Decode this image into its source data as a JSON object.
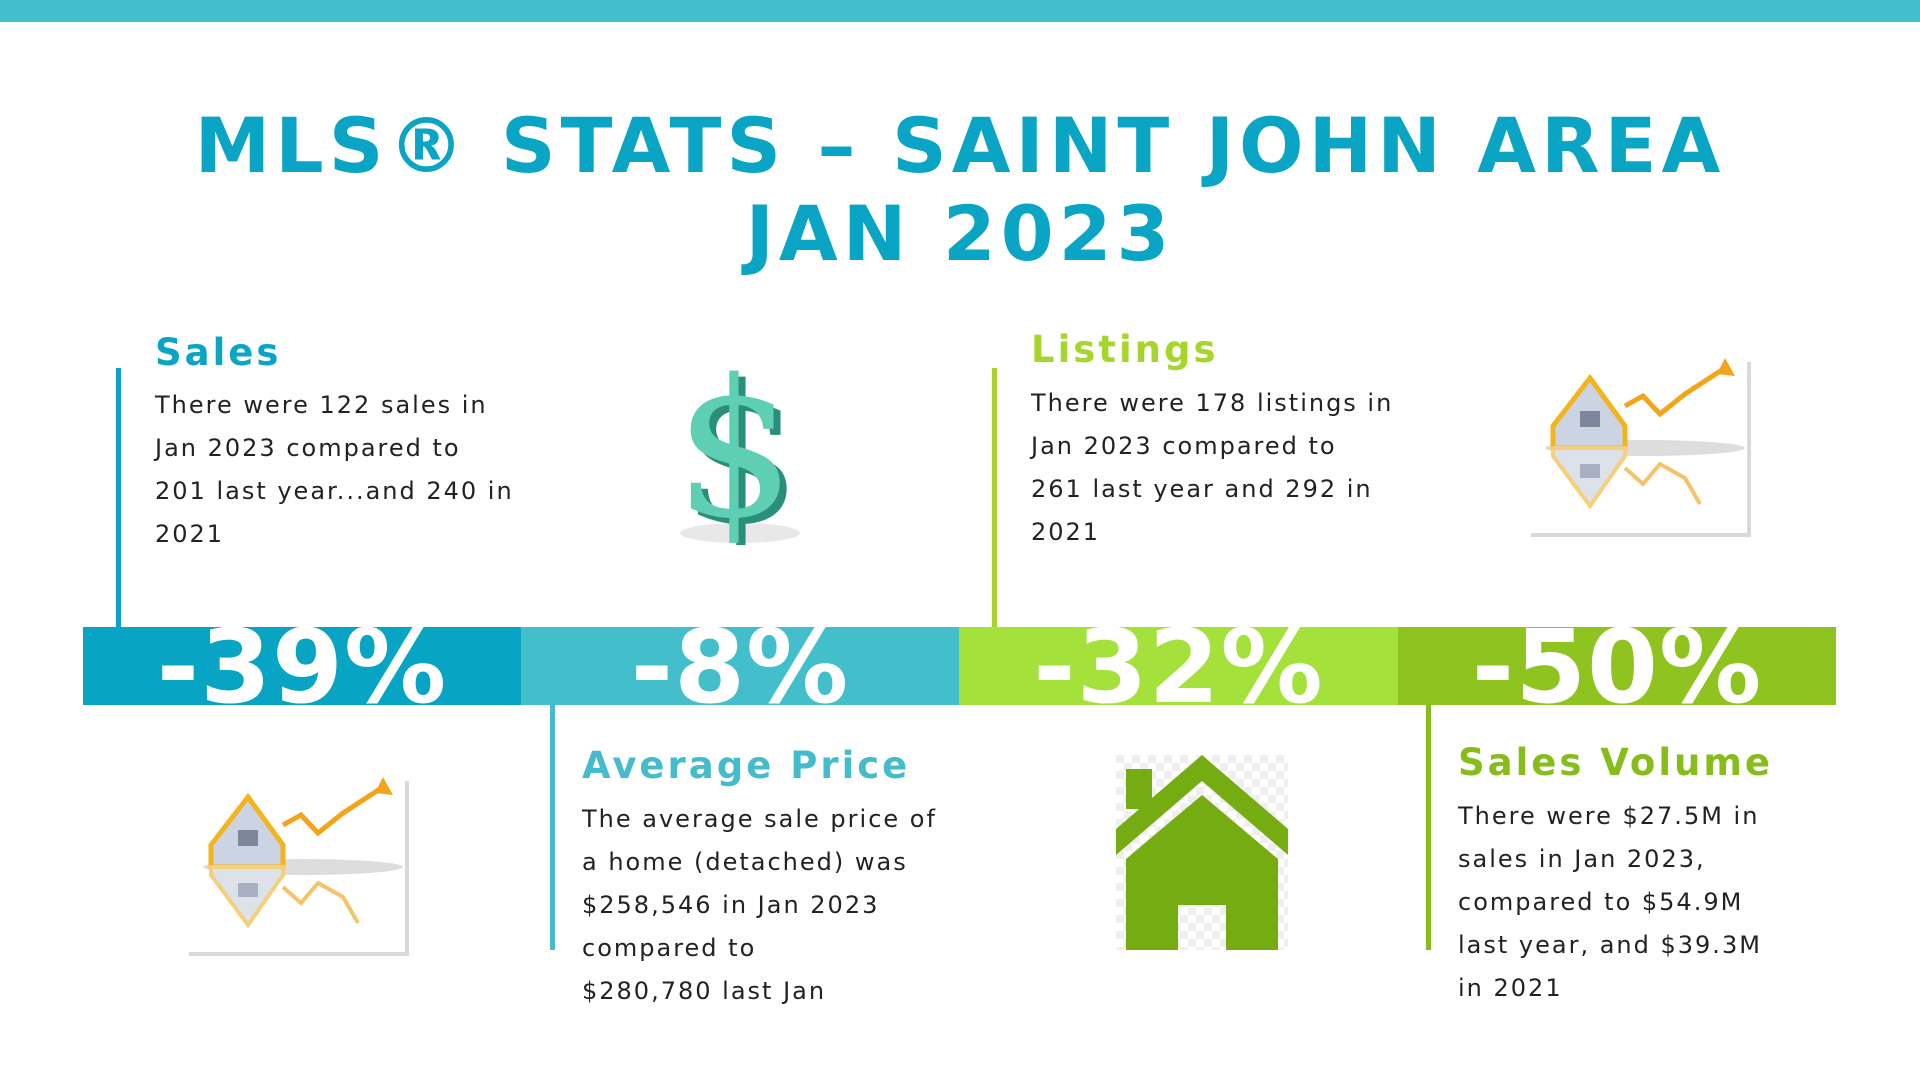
{
  "title": {
    "line1": "MLS® STATS – SAINT JOHN AREA",
    "line2": "JAN 2023"
  },
  "colors": {
    "top_bar": "#43bfcc",
    "title": "#0aa5c4",
    "band_1": "#07a4c4",
    "band_2": "#43bfcc",
    "band_3": "#a5e13b",
    "band_4": "#8fc31f",
    "sales_heading": "#0aa5c4",
    "listings_heading": "#a6d52c",
    "avg_price_heading": "#45bccb",
    "sales_volume_heading": "#86bd1a"
  },
  "sales": {
    "heading": "Sales",
    "lines": [
      "There were 122 sales in",
      "Jan 2023 compared to",
      "201 last year...and 240 in",
      "2021"
    ],
    "icon": "dollar-sign-icon"
  },
  "listings": {
    "heading": "Listings",
    "lines": [
      "There were 178 listings in",
      "Jan 2023 compared to",
      "261 last year and 292 in",
      "2021"
    ],
    "icon": "house-graph-icon"
  },
  "average_price": {
    "heading": "Average Price",
    "lines": [
      "The average sale price of",
      "a home (detached) was",
      "$258,546 in Jan 2023",
      "compared to",
      "$280,780 last Jan"
    ],
    "icon": "house-graph-icon"
  },
  "sales_volume": {
    "heading": "Sales Volume",
    "lines": [
      "There were $27.5M in",
      "sales in Jan 2023,",
      "compared to $54.9M",
      "last year, and $39.3M",
      "in 2021"
    ],
    "icon": "house-icon"
  },
  "stats": [
    "-39%",
    "-8%",
    "-32%",
    "-50%"
  ]
}
